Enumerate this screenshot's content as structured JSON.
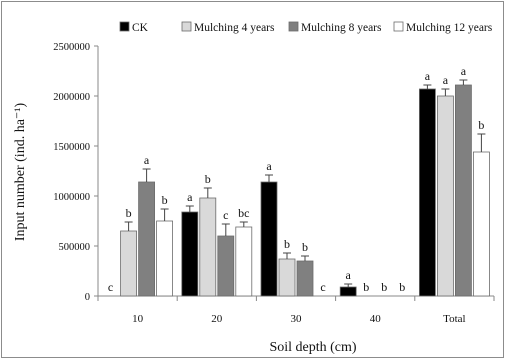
{
  "chart_data": {
    "type": "bar",
    "title": "",
    "xlabel": "Soil depth (cm)",
    "ylabel": "Input number (ind. ha⁻¹)",
    "categories": [
      "10",
      "20",
      "30",
      "40",
      "Total"
    ],
    "ylim": [
      0,
      2500000
    ],
    "yticks": [
      0,
      500000,
      1000000,
      1500000,
      2000000,
      2500000
    ],
    "ytick_labels": [
      "0",
      "500000",
      "1000000",
      "1500000",
      "2000000",
      "2500000"
    ],
    "grid": false,
    "legend_position": "top",
    "series": [
      {
        "name": "CK",
        "color": "#000000",
        "values": [
          0,
          840000,
          1140000,
          90000,
          2070000
        ],
        "errors": [
          0,
          60000,
          70000,
          30000,
          40000
        ],
        "letters": [
          "c",
          "a",
          "a",
          "a",
          "a"
        ]
      },
      {
        "name": "Mulching 4 years",
        "color": "#d9d9d9",
        "values": [
          650000,
          980000,
          370000,
          0,
          2000000
        ],
        "errors": [
          90000,
          100000,
          60000,
          0,
          70000
        ],
        "letters": [
          "b",
          "b",
          "b",
          "b",
          "a"
        ]
      },
      {
        "name": "Mulching 8 years",
        "color": "#808080",
        "values": [
          1140000,
          600000,
          350000,
          0,
          2110000
        ],
        "errors": [
          130000,
          120000,
          50000,
          0,
          50000
        ],
        "letters": [
          "a",
          "c",
          "b",
          "b",
          "a"
        ]
      },
      {
        "name": "Mulching 12 years",
        "color": "#ffffff",
        "values": [
          750000,
          690000,
          0,
          0,
          1440000
        ],
        "errors": [
          120000,
          50000,
          0,
          0,
          180000
        ],
        "letters": [
          "b",
          "bc",
          "c",
          "b",
          "b"
        ]
      }
    ]
  }
}
